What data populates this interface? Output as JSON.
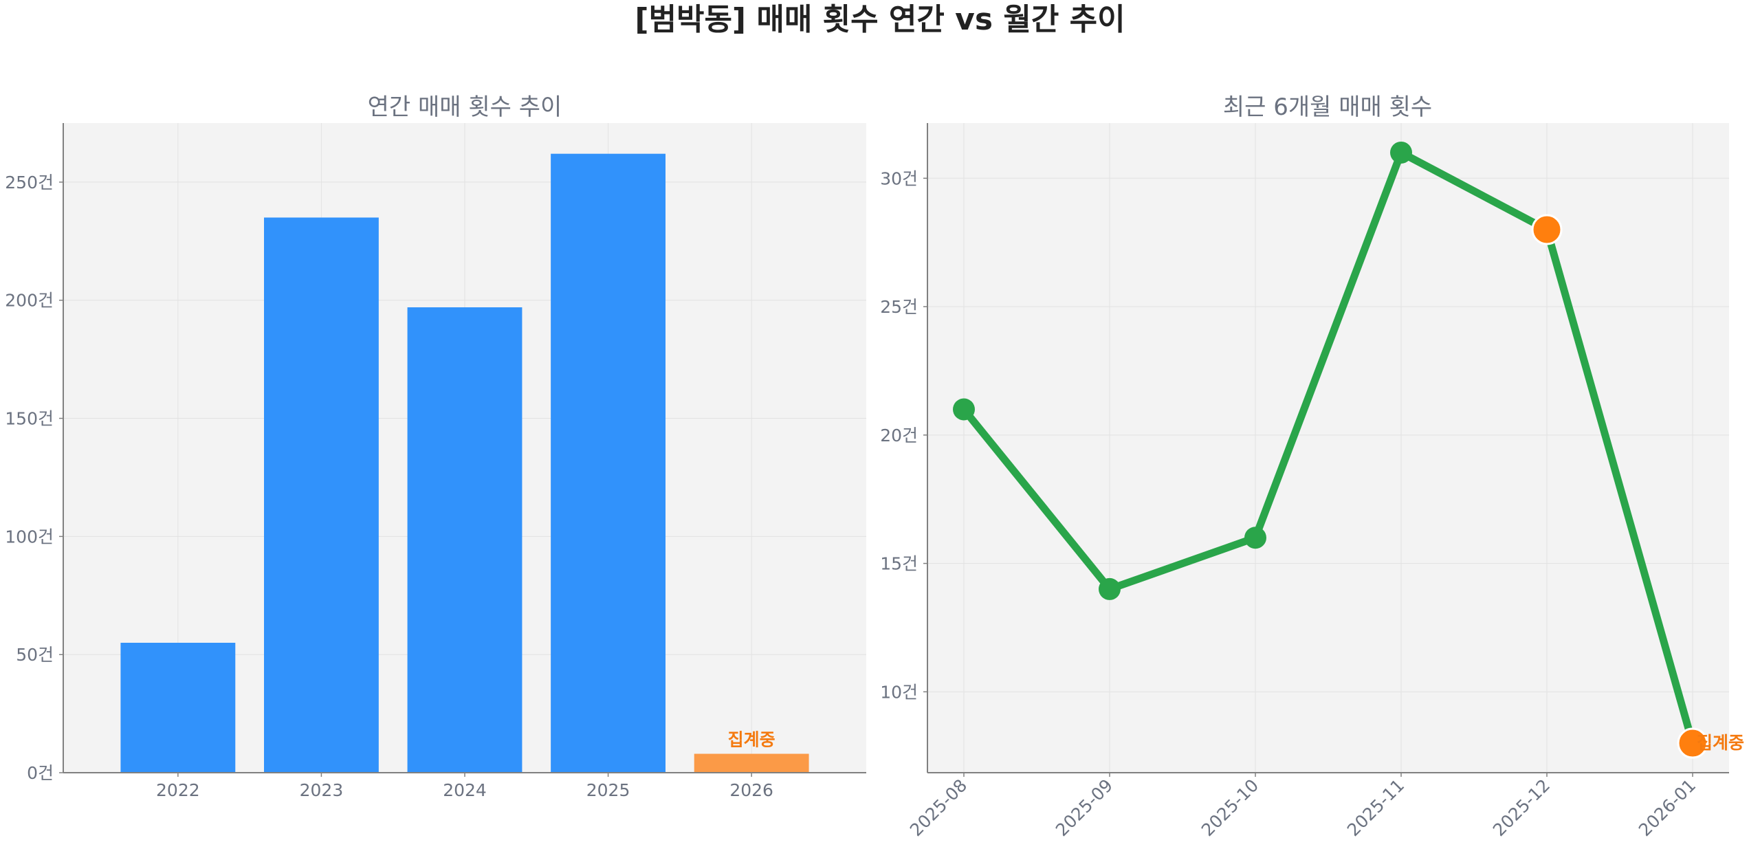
{
  "title": "[범박동] 매매 횟수 연간 vs 월간 추이",
  "colors": {
    "bar": "#3192fb",
    "bar_partial": "#fb9a47",
    "line": "#2aa54a",
    "highlight": "#ff7f0e",
    "note_text": "#f47a10",
    "plot_bg": "#f3f3f3",
    "grid": "#e2e2e2",
    "spine": "#808080"
  },
  "chart_data": [
    {
      "type": "bar",
      "title": "연간 매매 횟수 추이",
      "categories": [
        "2022",
        "2023",
        "2024",
        "2025",
        "2026"
      ],
      "values": [
        55,
        235,
        197,
        262,
        8
      ],
      "highlight_index": 4,
      "highlight_label": "집계중",
      "ylim": [
        0,
        275
      ],
      "yticks": [
        0,
        50,
        100,
        150,
        200,
        250
      ],
      "ytick_labels": [
        "0건",
        "50건",
        "100건",
        "150건",
        "200건",
        "250건"
      ],
      "grid": true
    },
    {
      "type": "line",
      "title": "최근 6개월 매매 횟수",
      "x": [
        "2025-08",
        "2025-09",
        "2025-10",
        "2025-11",
        "2025-12",
        "2026-01"
      ],
      "values": [
        21,
        14,
        16,
        31,
        28,
        8
      ],
      "highlight_indices": [
        4,
        5
      ],
      "highlight_label": "집계중",
      "highlight_label_index": 5,
      "ylim": [
        6.85,
        32.15
      ],
      "yticks": [
        10,
        15,
        20,
        25,
        30
      ],
      "ytick_labels": [
        "10건",
        "15건",
        "20건",
        "25건",
        "30건"
      ],
      "grid": true
    }
  ]
}
